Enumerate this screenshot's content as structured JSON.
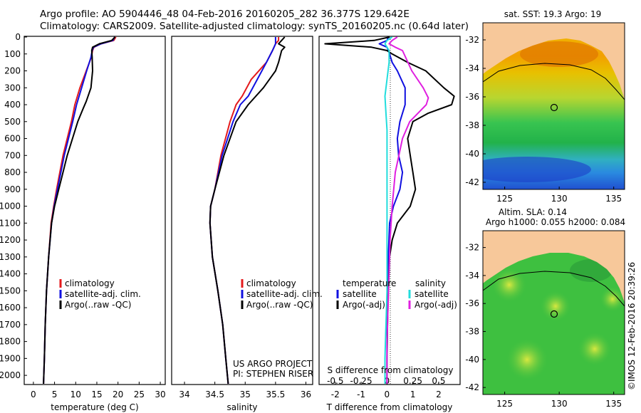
{
  "header": {
    "line1": "Argo profile: AO 5904446_48 04-Feb-2016 20160205_282 36.377S 129.642E",
    "line2": "Climatology: CARS2009. Satellite-adjusted climatology: synTS_20160205.nc (0.64d later)"
  },
  "colors": {
    "climatology": "#e41a1c",
    "satellite": "#1010e0",
    "argo": "#000000",
    "cyan": "#22dddd",
    "magenta": "#e020e0",
    "land": "#f7c89a"
  },
  "credit": {
    "project": "US ARGO PROJECT",
    "pi": "PI: STEPHEN RISER",
    "imos": "©IMOS 12-Feb-2016 20:39:26"
  },
  "chart_data": [
    {
      "type": "line",
      "xlabel": "temperature (deg C)",
      "ylabel": "",
      "xlim": [
        -2,
        31
      ],
      "ylim": [
        2050,
        0
      ],
      "xticks": [
        "0",
        "5",
        "10",
        "15",
        "20",
        "25",
        "30"
      ],
      "yticks": [
        "0",
        "100",
        "200",
        "300",
        "400",
        "500",
        "600",
        "700",
        "800",
        "900",
        "1000",
        "1100",
        "1200",
        "1300",
        "1400",
        "1500",
        "1600",
        "1700",
        "1800",
        "1900",
        "2000"
      ],
      "legend": [
        "climatology",
        "satellite-adj. clim.",
        "Argo(..raw -QC)"
      ],
      "series": [
        {
          "name": "climatology",
          "depth": [
            0,
            20,
            40,
            60,
            80,
            120,
            200,
            300,
            400,
            500,
            700,
            900,
            1000,
            1100,
            1300,
            1500,
            1700,
            1900,
            2050
          ],
          "values": [
            19.5,
            19,
            16,
            14.3,
            14,
            13.7,
            12.5,
            11,
            9.8,
            9,
            7,
            5.5,
            4.8,
            4.2,
            3.6,
            3.1,
            2.8,
            2.6,
            2.4
          ]
        },
        {
          "name": "satellite-adj. clim.",
          "depth": [
            0,
            20,
            40,
            60,
            80,
            120,
            200,
            300,
            400,
            500,
            700,
            900,
            1000,
            1100,
            1300,
            1500,
            1700,
            1900,
            2050
          ],
          "values": [
            19.2,
            18.8,
            16,
            14.2,
            13.9,
            13.6,
            12.6,
            11.4,
            10.2,
            9.3,
            7.3,
            5.7,
            4.9,
            4.3,
            3.6,
            3.1,
            2.8,
            2.6,
            2.4
          ]
        },
        {
          "name": "Argo(..raw -QC)",
          "depth": [
            0,
            20,
            40,
            60,
            80,
            120,
            200,
            300,
            380,
            420,
            500,
            700,
            900,
            1000,
            1100,
            1300,
            1500,
            1700,
            1900,
            2050
          ],
          "values": [
            19.3,
            18.5,
            15.6,
            14,
            13.8,
            13.9,
            14,
            13.6,
            12.5,
            11.8,
            10.5,
            8,
            6,
            5,
            4.3,
            3.6,
            3.1,
            2.8,
            2.6,
            2.4
          ]
        }
      ]
    },
    {
      "type": "line",
      "xlabel": "salinity",
      "xlim": [
        33.8,
        36.1
      ],
      "ylim": [
        2050,
        0
      ],
      "xticks": [
        "34",
        "34.5",
        "35",
        "35.5",
        "36"
      ],
      "legend": [
        "climatology",
        "satellite-adj. clim.",
        "Argo(..raw -QC)"
      ],
      "series": [
        {
          "name": "climatology",
          "depth": [
            0,
            20,
            40,
            80,
            150,
            250,
            350,
            400,
            500,
            700,
            900,
            1000,
            1100,
            1300,
            1500,
            1700,
            1900,
            2050
          ],
          "values": [
            35.55,
            35.55,
            35.5,
            35.45,
            35.35,
            35.1,
            34.95,
            34.85,
            34.75,
            34.6,
            34.5,
            34.43,
            34.42,
            34.46,
            34.55,
            34.63,
            34.68,
            34.72
          ]
        },
        {
          "name": "satellite-adj. clim.",
          "depth": [
            0,
            20,
            40,
            80,
            150,
            250,
            350,
            400,
            500,
            700,
            900,
            1000,
            1100,
            1300,
            1500,
            1700,
            1900,
            2050
          ],
          "values": [
            35.5,
            35.5,
            35.5,
            35.45,
            35.35,
            35.2,
            35.05,
            34.92,
            34.8,
            34.62,
            34.5,
            34.43,
            34.42,
            34.46,
            34.55,
            34.63,
            34.68,
            34.72
          ]
        },
        {
          "name": "Argo(..raw -QC)",
          "depth": [
            0,
            20,
            40,
            60,
            80,
            150,
            200,
            300,
            400,
            500,
            700,
            900,
            1000,
            1100,
            1300,
            1500,
            1700,
            1900,
            2050
          ],
          "values": [
            35.65,
            35.6,
            35.55,
            35.65,
            35.6,
            35.55,
            35.5,
            35.3,
            35.05,
            34.85,
            34.65,
            34.5,
            34.43,
            34.42,
            34.46,
            34.55,
            34.63,
            34.68,
            34.72
          ]
        }
      ]
    },
    {
      "type": "line",
      "xlabel": "T difference from climatology",
      "xlabel_top": "S difference from climatology",
      "xlim": [
        -2.6,
        2.8
      ],
      "ylim": [
        2050,
        0
      ],
      "xticks": [
        "-2",
        "-1",
        "0",
        "1",
        "2"
      ],
      "xticks_top": [
        "-0.5",
        "-0.25",
        "0",
        "0.25",
        "0.5"
      ],
      "legend_titles": [
        "temperature",
        "salinity"
      ],
      "legend": [
        "satellite",
        "Argo(-adj)",
        "satellite",
        "Argo(-adj)"
      ],
      "series": [
        {
          "name": "satellite",
          "group": "temperature",
          "depth": [
            0,
            20,
            40,
            60,
            100,
            150,
            200,
            300,
            400,
            500,
            600,
            700,
            800,
            900,
            1000,
            1100,
            1300,
            1500,
            1700,
            1900,
            2050
          ],
          "values": [
            0.05,
            0,
            -0.3,
            0,
            0.1,
            0.2,
            0.4,
            0.7,
            0.7,
            0.5,
            0.4,
            0.45,
            0.6,
            0.5,
            0.25,
            0.1,
            0.05,
            0.02,
            0,
            0,
            0
          ]
        },
        {
          "name": "Argo(-adj)",
          "group": "temperature",
          "depth": [
            0,
            20,
            40,
            60,
            80,
            100,
            150,
            200,
            300,
            350,
            400,
            450,
            500,
            600,
            700,
            800,
            900,
            1000,
            1100,
            1200,
            1300,
            1500,
            1700,
            1900,
            2050
          ],
          "values": [
            0.1,
            -0.5,
            -2.4,
            -0.6,
            0,
            0.2,
            0.8,
            1.5,
            2.2,
            2.6,
            2.5,
            1.6,
            1.0,
            0.8,
            0.9,
            1.0,
            1.1,
            0.9,
            0.4,
            0.2,
            0.1,
            0.05,
            0.02,
            0,
            0
          ]
        },
        {
          "name": "satellite",
          "group": "salinity",
          "depth": [
            0,
            20,
            40,
            80,
            150,
            250,
            350,
            450,
            550,
            700,
            900,
            1100,
            1300,
            1500,
            1700,
            1900,
            2050
          ],
          "values": [
            0.05,
            0,
            -0.02,
            0.02,
            0.02,
            0,
            -0.02,
            -0.01,
            0,
            0,
            0,
            0,
            0,
            0,
            -0.01,
            -0.02,
            -0.02
          ]
        },
        {
          "name": "Argo(-adj)",
          "group": "salinity",
          "depth": [
            0,
            20,
            40,
            60,
            80,
            120,
            200,
            300,
            360,
            400,
            450,
            500,
            600,
            800,
            1000,
            1200,
            1400,
            1600,
            1800,
            2050
          ],
          "values": [
            0.1,
            0.05,
            0.02,
            0.08,
            0.15,
            0.18,
            0.24,
            0.35,
            0.4,
            0.38,
            0.3,
            0.22,
            0.15,
            0.08,
            0.05,
            0.03,
            0.02,
            0.01,
            0,
            0
          ]
        }
      ]
    },
    {
      "type": "heatmap",
      "title": "sat. SST: 19.3  Argo: 19",
      "xlim": [
        123,
        136
      ],
      "ylim": [
        -42.5,
        -30.8
      ],
      "xticks": [
        "125",
        "130",
        "135"
      ],
      "yticks": [
        "-32",
        "-34",
        "-36",
        "-38",
        "-40",
        "-42"
      ],
      "profile_location": [
        129.642,
        -36.377
      ]
    },
    {
      "type": "heatmap",
      "title": "Altim. SLA: 0.14",
      "subtitle": "Argo h1000: 0.055 h2000: 0.084",
      "xlim": [
        123,
        136
      ],
      "ylim": [
        -42.5,
        -30.8
      ],
      "xticks": [
        "125",
        "130",
        "135"
      ],
      "yticks": [
        "-32",
        "-34",
        "-36",
        "-38",
        "-40",
        "-42"
      ],
      "profile_location": [
        129.642,
        -36.377
      ]
    }
  ]
}
